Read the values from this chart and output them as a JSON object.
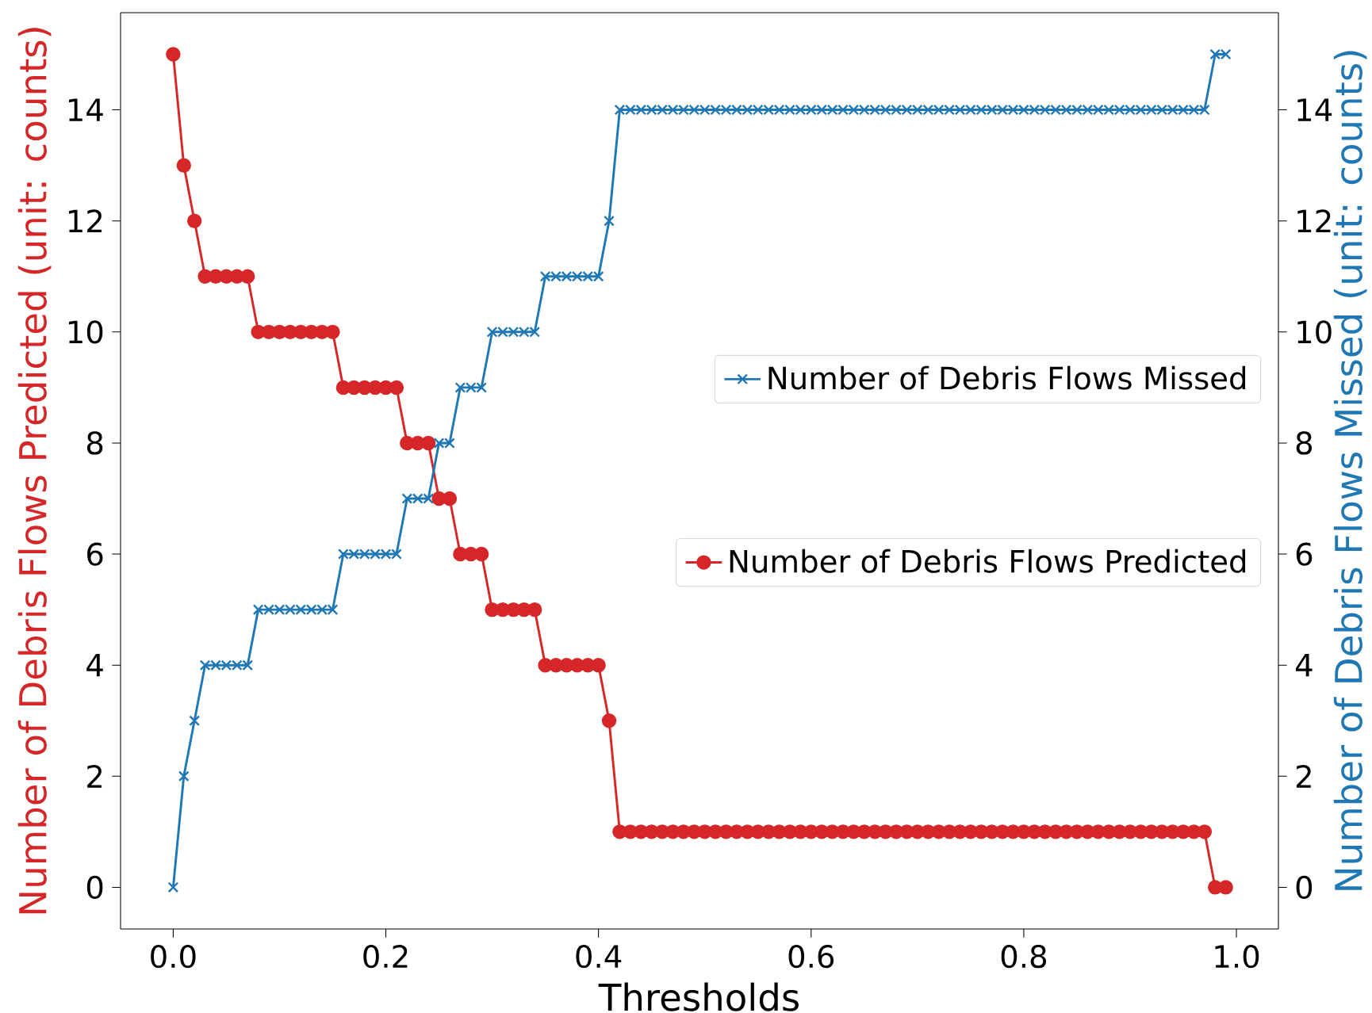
{
  "chart_data": {
    "type": "line",
    "xlabel": "Thresholds",
    "ylabel": "Number of Debris Flows Predicted (unit: counts)",
    "y2label": "Number of Debris Flows Missed (unit: counts)",
    "x": [
      0.0,
      0.01,
      0.02,
      0.03,
      0.04,
      0.05,
      0.06,
      0.07,
      0.08,
      0.09,
      0.1,
      0.11,
      0.12,
      0.13,
      0.14,
      0.15,
      0.16,
      0.17,
      0.18,
      0.19,
      0.2,
      0.21,
      0.22,
      0.23,
      0.24,
      0.25,
      0.26,
      0.27,
      0.28,
      0.29,
      0.3,
      0.31,
      0.32,
      0.33,
      0.34,
      0.35,
      0.36,
      0.37,
      0.38,
      0.39,
      0.4,
      0.41,
      0.42,
      0.43,
      0.44,
      0.45,
      0.46,
      0.47,
      0.48,
      0.49,
      0.5,
      0.51,
      0.52,
      0.53,
      0.54,
      0.55,
      0.56,
      0.57,
      0.58,
      0.59,
      0.6,
      0.61,
      0.62,
      0.63,
      0.64,
      0.65,
      0.66,
      0.67,
      0.68,
      0.69,
      0.7,
      0.71,
      0.72,
      0.73,
      0.74,
      0.75,
      0.76,
      0.77,
      0.78,
      0.79,
      0.8,
      0.81,
      0.82,
      0.83,
      0.84,
      0.85,
      0.86,
      0.87,
      0.88,
      0.89,
      0.9,
      0.91,
      0.92,
      0.93,
      0.94,
      0.95,
      0.96,
      0.97,
      0.98,
      0.99
    ],
    "series": [
      {
        "name": "Number of Debris Flows Predicted",
        "color": "#d62728",
        "marker": "circle",
        "values": [
          15,
          13,
          12,
          11,
          11,
          11,
          11,
          11,
          10,
          10,
          10,
          10,
          10,
          10,
          10,
          10,
          9,
          9,
          9,
          9,
          9,
          9,
          8,
          8,
          8,
          7,
          7,
          6,
          6,
          6,
          5,
          5,
          5,
          5,
          5,
          4,
          4,
          4,
          4,
          4,
          4,
          3,
          1,
          1,
          1,
          1,
          1,
          1,
          1,
          1,
          1,
          1,
          1,
          1,
          1,
          1,
          1,
          1,
          1,
          1,
          1,
          1,
          1,
          1,
          1,
          1,
          1,
          1,
          1,
          1,
          1,
          1,
          1,
          1,
          1,
          1,
          1,
          1,
          1,
          1,
          1,
          1,
          1,
          1,
          1,
          1,
          1,
          1,
          1,
          1,
          1,
          1,
          1,
          1,
          1,
          1,
          1,
          1,
          0,
          0
        ]
      },
      {
        "name": "Number of Debris Flows Missed",
        "color": "#1f77b4",
        "marker": "cross",
        "axis": "y2",
        "values": [
          0,
          2,
          3,
          4,
          4,
          4,
          4,
          4,
          5,
          5,
          5,
          5,
          5,
          5,
          5,
          5,
          6,
          6,
          6,
          6,
          6,
          6,
          7,
          7,
          7,
          8,
          8,
          9,
          9,
          9,
          10,
          10,
          10,
          10,
          10,
          11,
          11,
          11,
          11,
          11,
          11,
          12,
          14,
          14,
          14,
          14,
          14,
          14,
          14,
          14,
          14,
          14,
          14,
          14,
          14,
          14,
          14,
          14,
          14,
          14,
          14,
          14,
          14,
          14,
          14,
          14,
          14,
          14,
          14,
          14,
          14,
          14,
          14,
          14,
          14,
          14,
          14,
          14,
          14,
          14,
          14,
          14,
          14,
          14,
          14,
          14,
          14,
          14,
          14,
          14,
          14,
          14,
          14,
          14,
          14,
          14,
          14,
          14,
          15,
          15
        ]
      }
    ],
    "xlim": [
      -0.0495,
      1.0395
    ],
    "xticks": [
      {
        "value": 0,
        "label": "0.0"
      },
      {
        "value": 0.2,
        "label": "0.2"
      },
      {
        "value": 0.4,
        "label": "0.4"
      },
      {
        "value": 0.6,
        "label": "0.6"
      },
      {
        "value": 0.8,
        "label": "0.8"
      },
      {
        "value": 1,
        "label": "1.0"
      }
    ],
    "ylim": [
      -0.75,
      15.75
    ],
    "yticks": [
      0,
      2,
      4,
      6,
      8,
      10,
      12,
      14
    ],
    "y2lim": [
      -0.75,
      15.75
    ],
    "y2ticks": [
      0,
      2,
      4,
      6,
      8,
      10,
      12,
      14
    ],
    "legend": "right"
  }
}
